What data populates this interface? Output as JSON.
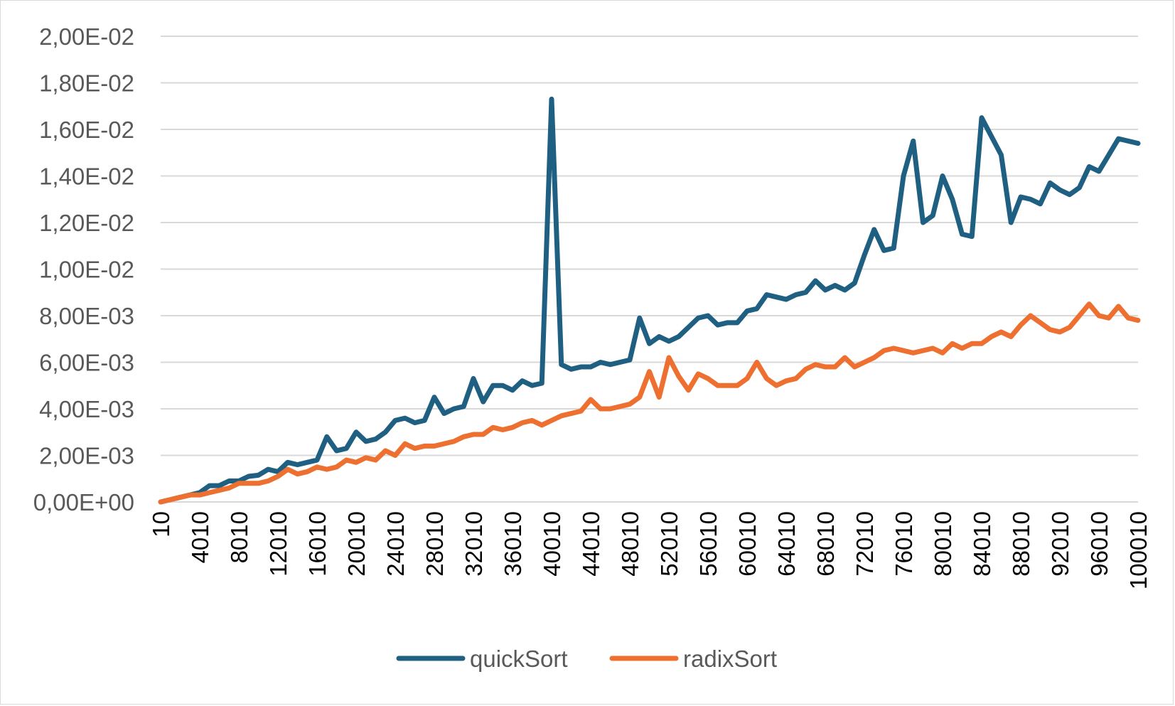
{
  "chart_data": {
    "type": "line",
    "title": "",
    "xlabel": "",
    "ylabel": "",
    "ylim": [
      0,
      0.02
    ],
    "yticks": [
      {
        "value": 0,
        "label": "0,00E+00"
      },
      {
        "value": 0.002,
        "label": "2,00E-03"
      },
      {
        "value": 0.004,
        "label": "4,00E-03"
      },
      {
        "value": 0.006,
        "label": "6,00E-03"
      },
      {
        "value": 0.008,
        "label": "8,00E-03"
      },
      {
        "value": 0.01,
        "label": "1,00E-02"
      },
      {
        "value": 0.012,
        "label": "1,20E-02"
      },
      {
        "value": 0.014,
        "label": "1,40E-02"
      },
      {
        "value": 0.016,
        "label": "1,60E-02"
      },
      {
        "value": 0.018,
        "label": "1,80E-02"
      },
      {
        "value": 0.02,
        "label": "2,00E-02"
      }
    ],
    "x": [
      10,
      1010,
      2010,
      3010,
      4010,
      5010,
      6010,
      7010,
      8010,
      9010,
      10010,
      11010,
      12010,
      13010,
      14010,
      15010,
      16010,
      17010,
      18010,
      19010,
      20010,
      21010,
      22010,
      23010,
      24010,
      25010,
      26010,
      27010,
      28010,
      29010,
      30010,
      31010,
      32010,
      33010,
      34010,
      35010,
      36010,
      37010,
      38010,
      39010,
      40010,
      41010,
      42010,
      43010,
      44010,
      45010,
      46010,
      47010,
      48010,
      49010,
      50010,
      51010,
      52010,
      53010,
      54010,
      55010,
      56010,
      57010,
      58010,
      59010,
      60010,
      61010,
      62010,
      63010,
      64010,
      65010,
      66010,
      67010,
      68010,
      69010,
      70010,
      71010,
      72010,
      73010,
      74010,
      75010,
      76010,
      77010,
      78010,
      79010,
      80010,
      81010,
      82010,
      83010,
      84010,
      85010,
      86010,
      87010,
      88010,
      89010,
      90010,
      91010,
      92010,
      93010,
      94010,
      95010,
      96010,
      97010,
      98010,
      99010,
      100010
    ],
    "x_tick_labels": [
      "10",
      "4010",
      "8010",
      "12010",
      "16010",
      "20010",
      "24010",
      "28010",
      "32010",
      "36010",
      "40010",
      "44010",
      "48010",
      "52010",
      "56010",
      "60010",
      "64010",
      "68010",
      "72010",
      "76010",
      "80010",
      "84010",
      "88010",
      "92010",
      "96010",
      "100010"
    ],
    "legend_position": "bottom",
    "grid": true,
    "series": [
      {
        "name": "quickSort",
        "color": "#1f5f82",
        "values": [
          0,
          0.0001,
          0.0002,
          0.0003,
          0.0004,
          0.0007,
          0.0007,
          0.0009,
          0.0009,
          0.0011,
          0.00115,
          0.0014,
          0.0013,
          0.0017,
          0.0016,
          0.0017,
          0.0018,
          0.0028,
          0.0022,
          0.0023,
          0.003,
          0.0026,
          0.0027,
          0.003,
          0.0035,
          0.0036,
          0.0034,
          0.0035,
          0.0045,
          0.0038,
          0.004,
          0.0041,
          0.0053,
          0.0043,
          0.005,
          0.005,
          0.0048,
          0.0052,
          0.005,
          0.0051,
          0.0173,
          0.0059,
          0.0057,
          0.0058,
          0.0058,
          0.006,
          0.0059,
          0.006,
          0.0061,
          0.0079,
          0.0068,
          0.0071,
          0.0069,
          0.0071,
          0.0075,
          0.0079,
          0.008,
          0.0076,
          0.0077,
          0.0077,
          0.0082,
          0.0083,
          0.0089,
          0.0088,
          0.0087,
          0.0089,
          0.009,
          0.0095,
          0.0091,
          0.0093,
          0.0091,
          0.0094,
          0.0106,
          0.0117,
          0.0108,
          0.0109,
          0.014,
          0.0155,
          0.012,
          0.0123,
          0.014,
          0.013,
          0.0115,
          0.0114,
          0.0165,
          0.0157,
          0.0149,
          0.012,
          0.0131,
          0.013,
          0.0128,
          0.0137,
          0.0134,
          0.0132,
          0.0135,
          0.0144,
          0.0142,
          0.0149,
          0.0156,
          0.0155,
          0.0154
        ]
      },
      {
        "name": "radixSort",
        "color": "#ed7030",
        "values": [
          0,
          0.0001,
          0.0002,
          0.0003,
          0.0003,
          0.0004,
          0.0005,
          0.0006,
          0.0008,
          0.0008,
          0.0008,
          0.0009,
          0.0011,
          0.0014,
          0.0012,
          0.0013,
          0.0015,
          0.0014,
          0.0015,
          0.0018,
          0.0017,
          0.0019,
          0.0018,
          0.0022,
          0.002,
          0.0025,
          0.0023,
          0.0024,
          0.0024,
          0.0025,
          0.0026,
          0.0028,
          0.0029,
          0.0029,
          0.0032,
          0.0031,
          0.0032,
          0.0034,
          0.0035,
          0.0033,
          0.0035,
          0.0037,
          0.0038,
          0.0039,
          0.0044,
          0.004,
          0.004,
          0.0041,
          0.0042,
          0.0045,
          0.0056,
          0.0045,
          0.0062,
          0.0054,
          0.0048,
          0.0055,
          0.0053,
          0.005,
          0.005,
          0.005,
          0.0053,
          0.006,
          0.0053,
          0.005,
          0.0052,
          0.0053,
          0.0057,
          0.0059,
          0.0058,
          0.0058,
          0.0062,
          0.0058,
          0.006,
          0.0062,
          0.0065,
          0.0066,
          0.0065,
          0.0064,
          0.0065,
          0.0066,
          0.0064,
          0.0068,
          0.0066,
          0.0068,
          0.0068,
          0.0071,
          0.0073,
          0.0071,
          0.0076,
          0.008,
          0.0077,
          0.0074,
          0.0073,
          0.0075,
          0.008,
          0.0085,
          0.008,
          0.0079,
          0.0084,
          0.0079,
          0.0078
        ]
      }
    ]
  }
}
